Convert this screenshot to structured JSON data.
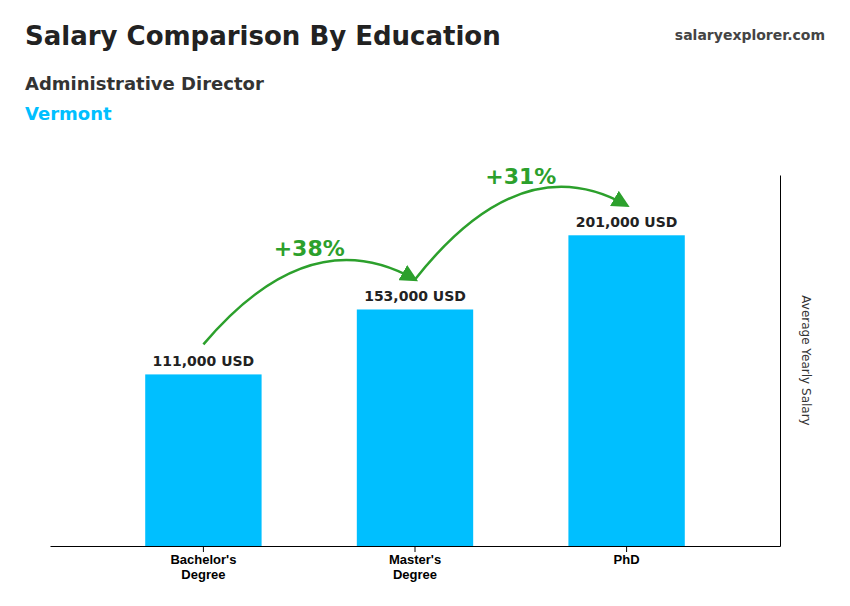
{
  "chart_data": {
    "type": "bar",
    "title": "Salary Comparison By Education",
    "subtitle": "Administrative Director",
    "location": "Vermont",
    "source": "salaryexplorer.com",
    "categories": [
      "Bachelor's\nDegree",
      "Master's\nDegree",
      "PhD"
    ],
    "values": [
      111000,
      153000,
      201000
    ],
    "value_labels": [
      "111,000 USD",
      "153,000 USD",
      "201,000 USD"
    ],
    "data_labels": true,
    "annotations": [
      "+38%",
      "+31%"
    ],
    "color": "#00BFFF",
    "ylabel": "Average Yearly Salary",
    "ylim": [
      0,
      240000
    ],
    "yticks": [],
    "tick_labels": "x",
    "grid": false
  }
}
